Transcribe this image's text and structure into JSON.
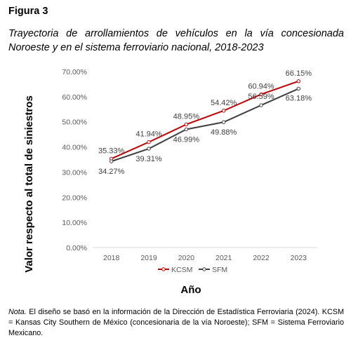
{
  "figure": {
    "label": "Figura 3",
    "title": "Trayectoria de arrollamientos de vehículos en la vía concesionada Noroeste y en el sistema ferroviario nacional, 2018-2023"
  },
  "chart_data": {
    "type": "line",
    "title": "",
    "xlabel": "Año",
    "ylabel": "Valor respecto al total de siniestros",
    "x": [
      "2018",
      "2019",
      "2020",
      "2021",
      "2022",
      "2023"
    ],
    "ylim": [
      0,
      70
    ],
    "yticks": [
      "0.00%",
      "10.00%",
      "20.00%",
      "30.00%",
      "40.00%",
      "50.00%",
      "60.00%",
      "70.00%"
    ],
    "grid": false,
    "legend": "bottom",
    "series": [
      {
        "name": "KCSM",
        "color": "#c00000",
        "values": [
          35.33,
          41.94,
          48.95,
          54.42,
          60.94,
          66.15
        ],
        "labels": [
          "35.33%",
          "41.94%",
          "48.95%",
          "54.42%",
          "60.94%",
          "66.15%"
        ]
      },
      {
        "name": "SFM",
        "color": "#404040",
        "values": [
          34.27,
          39.31,
          46.99,
          49.88,
          56.59,
          63.18
        ],
        "labels": [
          "34.27%",
          "39.31%",
          "46.99%",
          "49.88%",
          "56.59%",
          "63.18%"
        ]
      }
    ]
  },
  "note": {
    "label": "Nota.",
    "text": " El diseño se basó en la información de la Dirección de Estadística Ferroviaria (2024). KCSM = Kansas City Southern de México (concesionaria de la vía Noroeste); SFM = Sistema Ferroviario Mexicano."
  }
}
